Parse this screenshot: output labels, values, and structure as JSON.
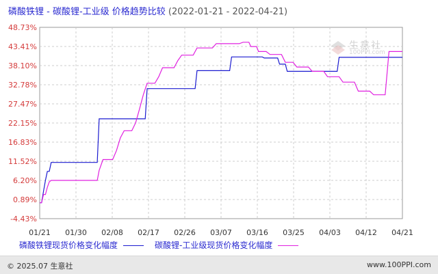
{
  "header": {
    "title": "磷酸铁锂 - 碳酸锂-工业级 价格趋势比较",
    "date_range": "(2022-01-21 - 2022-04-21)"
  },
  "footer": {
    "copyright": "© 2025.07 生意社",
    "website": "www.100PPI.com"
  },
  "watermark": {
    "brand": "生意社",
    "url": "100PPI.com"
  },
  "colors": {
    "series1": "#1a1ad0",
    "series2": "#e020e0",
    "axis_label": "#d43a3a",
    "grid": "#cccccc"
  },
  "chart_data": {
    "type": "line",
    "title": "磷酸铁锂 - 碳酸锂-工业级 价格趋势比较",
    "x_ticks": [
      "01/21",
      "01/30",
      "02/08",
      "02/17",
      "02/26",
      "03/07",
      "03/16",
      "03/25",
      "04/03",
      "04/12",
      "04/21"
    ],
    "y_ticks": [
      "48.73%",
      "43.41%",
      "38.10%",
      "32.78%",
      "27.47%",
      "22.15%",
      "16.83%",
      "11.52%",
      "6.20%",
      "0.89%",
      "-4.43%"
    ],
    "ylim": [
      -4.43,
      48.73
    ],
    "xlim_days": [
      0,
      90
    ],
    "grid": true,
    "legend_position": "bottom",
    "series": [
      {
        "name": "磷酸铁锂现货价格变化幅度",
        "color": "#1a1ad0",
        "points": [
          [
            0,
            0.0
          ],
          [
            1,
            0.0
          ],
          [
            2,
            3.2
          ],
          [
            3,
            6.2
          ],
          [
            4,
            8.7
          ],
          [
            5,
            8.7
          ],
          [
            6,
            11.2
          ],
          [
            30,
            11.2
          ],
          [
            31,
            23.3
          ],
          [
            55,
            23.3
          ],
          [
            56,
            31.7
          ],
          [
            81,
            31.7
          ],
          [
            82,
            36.7
          ],
          [
            99,
            36.7
          ],
          [
            100,
            40.5
          ],
          [
            116,
            40.5
          ],
          [
            117,
            40.2
          ],
          [
            124,
            40.2
          ],
          [
            125,
            38.5
          ],
          [
            128,
            38.5
          ],
          [
            129,
            36.5
          ],
          [
            155,
            36.5
          ],
          [
            156,
            40.4
          ],
          [
            189,
            40.4
          ]
        ]
      },
      {
        "name": "碳酸锂-工业级现货价格变化幅度",
        "color": "#e020e0",
        "points": [
          [
            0,
            0.0
          ],
          [
            1,
            0.0
          ],
          [
            2,
            2.3
          ],
          [
            3,
            2.3
          ],
          [
            4,
            4.3
          ],
          [
            5,
            5.8
          ],
          [
            6,
            6.2
          ],
          [
            30,
            6.2
          ],
          [
            31,
            9.0
          ],
          [
            33,
            12.0
          ],
          [
            38,
            12.0
          ],
          [
            40,
            14.5
          ],
          [
            42,
            18.0
          ],
          [
            44,
            20.0
          ],
          [
            48,
            20.0
          ],
          [
            50,
            22.2
          ],
          [
            52,
            26.0
          ],
          [
            54,
            30.0
          ],
          [
            56,
            33.2
          ],
          [
            60,
            33.2
          ],
          [
            62,
            35.0
          ],
          [
            64,
            37.5
          ],
          [
            70,
            37.5
          ],
          [
            72,
            39.5
          ],
          [
            74,
            41.0
          ],
          [
            80,
            41.0
          ],
          [
            82,
            43.0
          ],
          [
            90,
            43.0
          ],
          [
            92,
            44.2
          ],
          [
            104,
            44.2
          ],
          [
            106,
            44.6
          ],
          [
            109,
            44.6
          ],
          [
            110,
            43.4
          ],
          [
            113,
            43.4
          ],
          [
            114,
            42.0
          ],
          [
            118,
            42.0
          ],
          [
            120,
            41.2
          ],
          [
            126,
            41.2
          ],
          [
            128,
            39.0
          ],
          [
            132,
            39.0
          ],
          [
            134,
            37.7
          ],
          [
            140,
            37.7
          ],
          [
            142,
            36.5
          ],
          [
            148,
            36.5
          ],
          [
            150,
            35.0
          ],
          [
            156,
            35.0
          ],
          [
            158,
            33.5
          ],
          [
            164,
            33.5
          ],
          [
            166,
            31.0
          ],
          [
            172,
            31.0
          ],
          [
            174,
            30.0
          ],
          [
            180,
            30.0
          ],
          [
            182,
            42.0
          ],
          [
            189,
            42.0
          ]
        ]
      }
    ]
  }
}
